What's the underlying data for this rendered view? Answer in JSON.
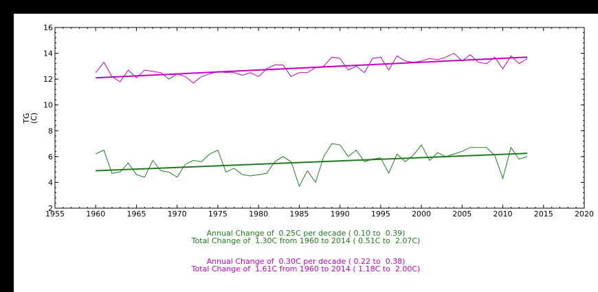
{
  "colors": {
    "background_outer": "#000000",
    "plot_background": "#ffffff",
    "green": "#1f7a1f",
    "magenta": "#c000c0"
  },
  "chart_data": {
    "type": "line",
    "xlabel": "",
    "ylabel_line1": "TG",
    "ylabel_line2": "(C)",
    "xlim": [
      1955,
      2020
    ],
    "ylim": [
      2,
      16
    ],
    "xticks": [
      1955,
      1960,
      1965,
      1970,
      1975,
      1980,
      1985,
      1990,
      1995,
      2000,
      2005,
      2010,
      2015,
      2020
    ],
    "yticks": [
      2,
      4,
      6,
      8,
      10,
      12,
      14,
      16
    ],
    "grid": false,
    "legend": "none",
    "x": [
      1960,
      1961,
      1962,
      1963,
      1964,
      1965,
      1966,
      1967,
      1968,
      1969,
      1970,
      1971,
      1972,
      1973,
      1974,
      1975,
      1976,
      1977,
      1978,
      1979,
      1980,
      1981,
      1982,
      1983,
      1984,
      1985,
      1986,
      1987,
      1988,
      1989,
      1990,
      1991,
      1992,
      1993,
      1994,
      1995,
      1996,
      1997,
      1998,
      1999,
      2000,
      2001,
      2002,
      2003,
      2004,
      2005,
      2006,
      2007,
      2008,
      2009,
      2010,
      2011,
      2012,
      2013
    ],
    "series": [
      {
        "color": "magenta",
        "values": [
          12.5,
          13.3,
          12.2,
          11.8,
          12.7,
          12.1,
          12.7,
          12.6,
          12.5,
          12.0,
          12.4,
          12.2,
          11.7,
          12.2,
          12.4,
          12.6,
          12.5,
          12.5,
          12.3,
          12.5,
          12.2,
          12.8,
          13.1,
          13.1,
          12.2,
          12.5,
          12.5,
          12.9,
          13.0,
          13.7,
          13.6,
          12.7,
          13.0,
          12.5,
          13.6,
          13.7,
          12.7,
          13.8,
          13.4,
          13.3,
          13.4,
          13.6,
          13.5,
          13.7,
          14.0,
          13.4,
          13.9,
          13.3,
          13.2,
          13.7,
          12.8,
          13.8,
          13.2,
          13.6
        ],
        "trend": [
          12.1,
          13.7
        ]
      },
      {
        "color": "green",
        "values": [
          6.2,
          6.5,
          4.7,
          4.8,
          5.5,
          4.6,
          4.4,
          5.7,
          4.9,
          4.8,
          4.4,
          5.4,
          5.7,
          5.6,
          6.2,
          6.5,
          4.8,
          5.1,
          4.6,
          4.5,
          4.6,
          4.7,
          5.6,
          6.0,
          5.6,
          3.7,
          4.9,
          4.0,
          6.0,
          7.0,
          6.9,
          6.0,
          6.5,
          5.6,
          5.8,
          5.9,
          4.7,
          6.2,
          5.6,
          6.1,
          6.9,
          5.7,
          6.3,
          6.0,
          6.2,
          6.4,
          6.7,
          6.7,
          6.7,
          6.1,
          4.3,
          6.7,
          5.8,
          6.0
        ],
        "trend": [
          4.9,
          6.25
        ]
      }
    ],
    "annotations": [
      {
        "color": "green",
        "line1": "Annual Change of  0.25C per decade ( 0.10 to  0.39)",
        "line2": "Total Change of  1.30C from 1960 to 2014 ( 0.51C to  2.07C)"
      },
      {
        "color": "magenta",
        "line1": "Annual Change of  0.30C per decade ( 0.22 to  0.38)",
        "line2": "Total Change of  1.61C from 1960 to 2014 ( 1.18C to  2.00C)"
      }
    ]
  }
}
